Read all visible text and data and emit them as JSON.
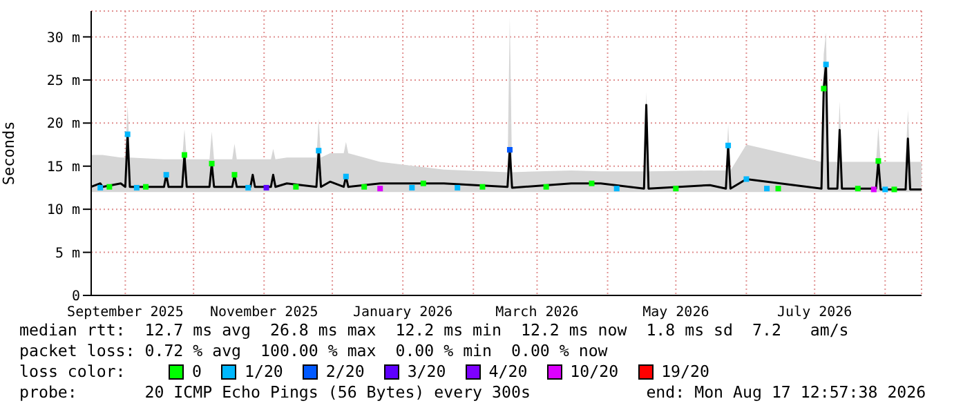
{
  "chart_data": {
    "type": "line",
    "ylabel": "Seconds",
    "xlim": [
      "2025-08-17",
      "2026-08-17"
    ],
    "xticks": [
      {
        "value": "2025-09-01",
        "label": "September 2025"
      },
      {
        "value": "2025-10-01",
        "label": null
      },
      {
        "value": "2025-11-01",
        "label": "November 2025"
      },
      {
        "value": "2025-12-01",
        "label": null
      },
      {
        "value": "2026-01-01",
        "label": "January 2026"
      },
      {
        "value": "2026-02-01",
        "label": null
      },
      {
        "value": "2026-03-01",
        "label": "March 2026"
      },
      {
        "value": "2026-04-01",
        "label": null
      },
      {
        "value": "2026-05-01",
        "label": "May 2026"
      },
      {
        "value": "2026-06-01",
        "label": null
      },
      {
        "value": "2026-07-01",
        "label": "July 2026"
      },
      {
        "value": "2026-08-01",
        "label": null
      }
    ],
    "ylim": [
      0,
      33
    ],
    "yticks": [
      0,
      {
        "value": 5,
        "label": "5 m"
      },
      {
        "value": 10,
        "label": "10 m"
      },
      {
        "value": 15,
        "label": "15 m"
      },
      {
        "value": 20,
        "label": "20 m"
      },
      {
        "value": 25,
        "label": "25 m"
      },
      {
        "value": 30,
        "label": "30 m"
      }
    ],
    "grid": true,
    "legend": "bottom",
    "legend_title": "loss color:",
    "series": [
      {
        "color": "#000000",
        "x": [
          "2025-08-17",
          "2025-08-21",
          "2025-08-22",
          "2025-08-30",
          "2025-09-01",
          "2025-09-02",
          "2025-09-03",
          "2025-09-18",
          "2025-09-19",
          "2025-09-20",
          "2025-09-26",
          "2025-09-27",
          "2025-09-28",
          "2025-10-08",
          "2025-10-09",
          "2025-10-10",
          "2025-10-18",
          "2025-10-19",
          "2025-10-20",
          "2025-10-26",
          "2025-10-27",
          "2025-10-28",
          "2025-11-04",
          "2025-11-05",
          "2025-11-06",
          "2025-11-11",
          "2025-11-24",
          "2025-11-25",
          "2025-11-26",
          "2025-11-30",
          "2025-12-06",
          "2025-12-07",
          "2025-12-08",
          "2025-12-22",
          "2026-01-19",
          "2026-02-16",
          "2026-02-17",
          "2026-02-18",
          "2026-03-16",
          "2026-03-29",
          "2026-04-17",
          "2026-04-18",
          "2026-04-19",
          "2026-05-16",
          "2026-05-23",
          "2026-05-24",
          "2026-05-25",
          "2026-06-01",
          "2026-07-04",
          "2026-07-05",
          "2026-07-06",
          "2026-07-07",
          "2026-07-11",
          "2026-07-12",
          "2026-07-13",
          "2026-07-28",
          "2026-07-29",
          "2026-07-30",
          "2026-08-10",
          "2026-08-11",
          "2026-08-12",
          "2026-08-17"
        ],
        "values": [
          12.6,
          13,
          12.6,
          13,
          12.6,
          18.7,
          12.6,
          12.6,
          14,
          12.6,
          12.6,
          16.3,
          12.6,
          12.6,
          15.3,
          12.6,
          12.6,
          14,
          12.6,
          12.6,
          14,
          12.6,
          12.6,
          14,
          12.6,
          13,
          12.6,
          16.8,
          12.6,
          13.2,
          12.6,
          13.8,
          12.6,
          13,
          13,
          12.6,
          16.9,
          12.5,
          13,
          13,
          12.4,
          22.1,
          12.4,
          12.8,
          12.4,
          17.4,
          12.4,
          13.5,
          12.4,
          24,
          26.8,
          12.4,
          12.4,
          19.2,
          12.4,
          12.4,
          15.6,
          12.3,
          12.3,
          18.2,
          12.3,
          12.3
        ],
        "upper": [
          16.3,
          16.3,
          16.3,
          16,
          16,
          22,
          16,
          15.8,
          15.8,
          15.8,
          15.8,
          19.3,
          15.8,
          15.8,
          19,
          15.8,
          15.8,
          17.6,
          15.8,
          15.8,
          15.8,
          15.8,
          15.8,
          17,
          15.8,
          16,
          16,
          20.5,
          16,
          16.5,
          16.5,
          17.8,
          16.5,
          15.5,
          14.6,
          14.3,
          32.3,
          14.3,
          14.5,
          14.4,
          14.4,
          23.6,
          14.4,
          14.5,
          14.5,
          19.8,
          14.5,
          17.5,
          15.5,
          28,
          30.5,
          15.5,
          15.5,
          22.5,
          15.5,
          15.5,
          19.5,
          15.5,
          15.5,
          21.5,
          15.5,
          15.5
        ],
        "lower": [
          12,
          12,
          12,
          12,
          12,
          12,
          12,
          12,
          12,
          12,
          12,
          12,
          12,
          12,
          12,
          12,
          12,
          12,
          12,
          12,
          12,
          12,
          12,
          12,
          12,
          12,
          12,
          12,
          12,
          12,
          12,
          12,
          12,
          12,
          12,
          12,
          12,
          12,
          12,
          12,
          12,
          12,
          12,
          12,
          12,
          12,
          12,
          12,
          12,
          12,
          12,
          12,
          12,
          12,
          12,
          12,
          12,
          12,
          12,
          12,
          12,
          12
        ]
      },
      {
        "type": "scatter",
        "name": "0",
        "color": "#00ff00",
        "x": [
          "2025-08-25",
          "2025-09-10",
          "2025-09-27",
          "2025-10-09",
          "2025-10-19",
          "2025-11-15",
          "2025-12-15",
          "2026-01-10",
          "2026-02-05",
          "2026-03-05",
          "2026-03-25",
          "2026-05-01",
          "2026-06-15",
          "2026-07-05",
          "2026-07-20",
          "2026-07-29",
          "2026-08-05"
        ],
        "values": [
          12.6,
          12.6,
          16.3,
          15.3,
          14,
          12.6,
          12.6,
          13,
          12.6,
          12.6,
          13,
          12.4,
          12.4,
          24,
          12.4,
          15.6,
          12.3
        ]
      },
      {
        "type": "scatter",
        "name": "1/20",
        "color": "#00b8ff",
        "x": [
          "2025-08-21",
          "2025-09-02",
          "2025-09-06",
          "2025-09-19",
          "2025-10-25",
          "2025-11-25",
          "2025-12-07",
          "2026-01-05",
          "2026-01-25",
          "2026-04-05",
          "2026-05-24",
          "2026-06-01",
          "2026-06-10",
          "2026-07-06",
          "2026-08-01"
        ],
        "values": [
          12.5,
          18.7,
          12.5,
          14,
          12.5,
          16.8,
          13.8,
          12.5,
          12.5,
          12.4,
          17.4,
          13.5,
          12.4,
          26.8,
          12.3
        ]
      },
      {
        "type": "scatter",
        "name": "2/20",
        "color": "#0059ff",
        "x": [
          "2026-02-17"
        ],
        "values": [
          16.9
        ]
      },
      {
        "type": "scatter",
        "name": "3/20",
        "color": "#5e00ff",
        "x": [
          "2025-11-02"
        ],
        "values": [
          12.5
        ]
      },
      {
        "type": "scatter",
        "name": "4/20",
        "color": "#7e00ff"
      },
      {
        "type": "scatter",
        "name": "10/20",
        "color": "#dd00ff",
        "x": [
          "2025-12-22",
          "2026-07-27"
        ],
        "values": [
          12.4,
          12.3
        ]
      },
      {
        "type": "scatter",
        "name": "19/20",
        "color": "#ff0000"
      }
    ],
    "annotations": [
      "median rtt:  12.7 ms avg  26.8 ms max  12.2 ms min  12.2 ms now  1.8 ms sd  7.2   am/s",
      "packet loss: 0.72 % avg  100.00 % max  0.00 % min  0.00 % now",
      "probe:       20 ICMP Echo Pings (56 Bytes) every 300s            end: Mon Aug 17 12:57:38 2026"
    ]
  }
}
